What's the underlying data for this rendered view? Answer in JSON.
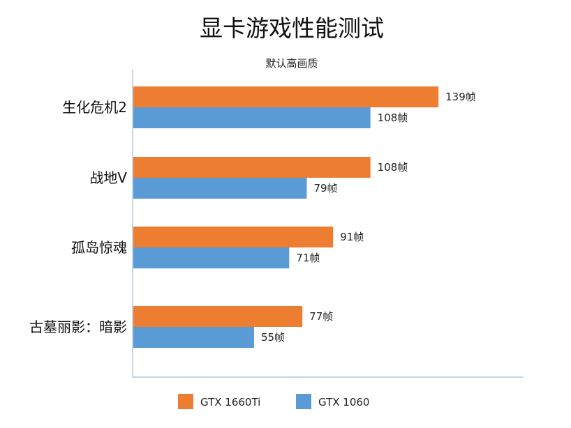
{
  "chart_data": {
    "type": "bar",
    "orientation": "horizontal",
    "title": "显卡游戏性能测试",
    "subtitle": "默认高画质",
    "categories": [
      "生化危机2",
      "战地V",
      "孤岛惊魂",
      "古墓丽影：暗影"
    ],
    "series": [
      {
        "name": "GTX 1660Ti",
        "color": "#ED7D31",
        "values": [
          139,
          108,
          91,
          77
        ],
        "labels": [
          "139帧",
          "108帧",
          "91帧",
          "77帧"
        ]
      },
      {
        "name": "GTX 1060",
        "color": "#5B9BD5",
        "values": [
          108,
          79,
          71,
          55
        ],
        "labels": [
          "108帧",
          "79帧",
          "71帧",
          "55帧"
        ]
      }
    ],
    "xlim": [
      0,
      180
    ],
    "grid": false,
    "legend_position": "bottom",
    "axis_color": "#8EA9C8"
  }
}
